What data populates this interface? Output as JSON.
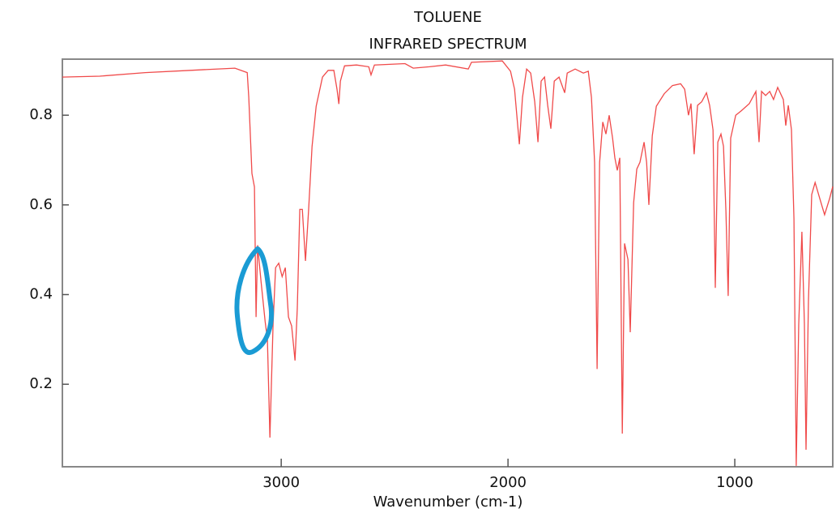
{
  "chart_data": {
    "type": "line",
    "title": "TOLUENE",
    "subtitle": "INFRARED SPECTRUM",
    "x_label": "Wavenumber (cm-1)",
    "color": "#f04a4a",
    "x": [
      3965,
      3800,
      3600,
      3400,
      3204,
      3150,
      3143,
      3129,
      3118,
      3111,
      3104,
      3089,
      3071,
      3061,
      3050,
      3036,
      3025,
      3011,
      2996,
      2982,
      2968,
      2954,
      2939,
      2929,
      2918,
      2907,
      2893,
      2879,
      2864,
      2846,
      2818,
      2793,
      2768,
      2754,
      2746,
      2739,
      2721,
      2668,
      2614,
      2604,
      2589,
      2454,
      2418,
      2346,
      2275,
      2175,
      2161,
      2025,
      1989,
      1971,
      1950,
      1936,
      1918,
      1900,
      1882,
      1868,
      1854,
      1839,
      1825,
      1811,
      1796,
      1775,
      1750,
      1739,
      1704,
      1668,
      1646,
      1632,
      1618,
      1607,
      1596,
      1582,
      1568,
      1554,
      1539,
      1529,
      1518,
      1507,
      1496,
      1486,
      1471,
      1461,
      1446,
      1432,
      1418,
      1400,
      1389,
      1379,
      1364,
      1346,
      1311,
      1275,
      1239,
      1221,
      1204,
      1193,
      1179,
      1164,
      1146,
      1125,
      1111,
      1096,
      1086,
      1075,
      1061,
      1050,
      1039,
      1029,
      1018,
      996,
      971,
      936,
      907,
      893,
      882,
      864,
      846,
      829,
      811,
      786,
      775,
      764,
      750,
      739,
      729,
      718,
      704,
      693,
      686,
      675,
      661,
      646,
      625,
      604,
      582,
      568
    ],
    "values": [
      0.885,
      0.887,
      0.895,
      0.9,
      0.905,
      0.895,
      0.84,
      0.67,
      0.64,
      0.35,
      0.51,
      0.43,
      0.34,
      0.3,
      0.081,
      0.334,
      0.46,
      0.47,
      0.44,
      0.46,
      0.35,
      0.33,
      0.253,
      0.37,
      0.59,
      0.59,
      0.475,
      0.59,
      0.73,
      0.82,
      0.885,
      0.9,
      0.9,
      0.858,
      0.825,
      0.876,
      0.91,
      0.912,
      0.908,
      0.89,
      0.912,
      0.915,
      0.905,
      0.908,
      0.912,
      0.903,
      0.918,
      0.921,
      0.898,
      0.858,
      0.735,
      0.84,
      0.903,
      0.894,
      0.83,
      0.74,
      0.876,
      0.885,
      0.822,
      0.77,
      0.876,
      0.885,
      0.85,
      0.894,
      0.903,
      0.894,
      0.898,
      0.84,
      0.695,
      0.234,
      0.695,
      0.785,
      0.758,
      0.8,
      0.749,
      0.705,
      0.677,
      0.705,
      0.09,
      0.514,
      0.478,
      0.316,
      0.605,
      0.68,
      0.695,
      0.74,
      0.695,
      0.6,
      0.754,
      0.82,
      0.848,
      0.866,
      0.87,
      0.858,
      0.8,
      0.826,
      0.713,
      0.822,
      0.83,
      0.85,
      0.822,
      0.767,
      0.415,
      0.74,
      0.758,
      0.731,
      0.587,
      0.397,
      0.749,
      0.8,
      0.81,
      0.826,
      0.853,
      0.74,
      0.853,
      0.844,
      0.853,
      0.835,
      0.862,
      0.835,
      0.777,
      0.822,
      0.768,
      0.569,
      0.018,
      0.334,
      0.54,
      0.334,
      0.054,
      0.387,
      0.623,
      0.65,
      0.614,
      0.578,
      0.614,
      0.641
    ],
    "xlim": [
      3965,
      568
    ],
    "ylim": [
      0.016,
      0.925
    ],
    "xticks": [
      3000,
      2000,
      1000
    ],
    "yticks": [
      0.2,
      0.4,
      0.6,
      0.8
    ]
  }
}
